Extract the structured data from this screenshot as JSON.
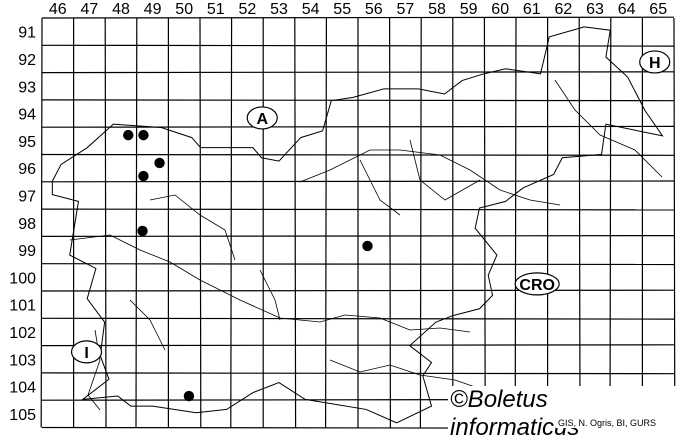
{
  "map": {
    "grid_columns": [
      "46",
      "47",
      "48",
      "49",
      "50",
      "51",
      "52",
      "53",
      "54",
      "55",
      "56",
      "57",
      "58",
      "59",
      "60",
      "61",
      "62",
      "63",
      "64",
      "65"
    ],
    "grid_rows": [
      "91",
      "92",
      "93",
      "94",
      "95",
      "96",
      "97",
      "98",
      "99",
      "100",
      "101",
      "102",
      "103",
      "104",
      "105"
    ],
    "country_labels": [
      {
        "text": "A",
        "col": 52.97,
        "row": 94.66
      },
      {
        "text": "H",
        "col": 65.39,
        "row": 92.61
      },
      {
        "text": "CRO",
        "col": 61.67,
        "row": 100.74
      },
      {
        "text": "I",
        "col": 47.41,
        "row": 103.23
      }
    ],
    "records": [
      {
        "col": 48.73,
        "row": 95.29
      },
      {
        "col": 49.21,
        "row": 95.29
      },
      {
        "col": 49.72,
        "row": 96.31
      },
      {
        "col": 49.21,
        "row": 96.79
      },
      {
        "col": 49.18,
        "row": 98.8
      },
      {
        "col": 56.3,
        "row": 99.35
      },
      {
        "col": 50.65,
        "row": 104.85
      }
    ],
    "record_color": "#000000",
    "credit": "©Boletus informaticus",
    "source": "GIS, N. Ogris, BI, GURS"
  }
}
